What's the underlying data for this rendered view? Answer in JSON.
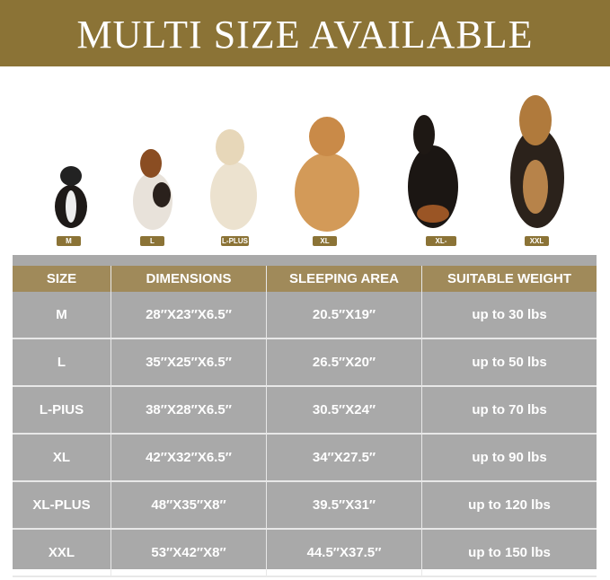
{
  "banner": {
    "title": "MULTI SIZE AVAILABLE"
  },
  "dogs": [
    "M",
    "L",
    "L-PLUS",
    "XL",
    "XL-PLUS",
    "XXL"
  ],
  "colors": {
    "brand": "#8b7336",
    "header": "#a08a5a",
    "row": "#a9a9a9"
  },
  "table": {
    "headers": [
      "SIZE",
      "DIMENSIONS",
      "SLEEPING AREA",
      "SUITABLE WEIGHT"
    ],
    "rows": [
      [
        "M",
        "28″X23″X6.5″",
        "20.5″X19″",
        "up to 30 lbs"
      ],
      [
        "L",
        "35″X25″X6.5″",
        "26.5″X20″",
        "up to 50 lbs"
      ],
      [
        "L-PIUS",
        "38″X28″X6.5″",
        "30.5″X24″",
        "up to 70 lbs"
      ],
      [
        "XL",
        "42″X32″X6.5″",
        "34″X27.5″",
        "up to 90 lbs"
      ],
      [
        "XL-PLUS",
        "48″X35″X8″",
        "39.5″X31″",
        "up to 120 lbs"
      ],
      [
        "XXL",
        "53″X42″X8″",
        "44.5″X37.5″",
        "up to 150 lbs"
      ]
    ]
  }
}
